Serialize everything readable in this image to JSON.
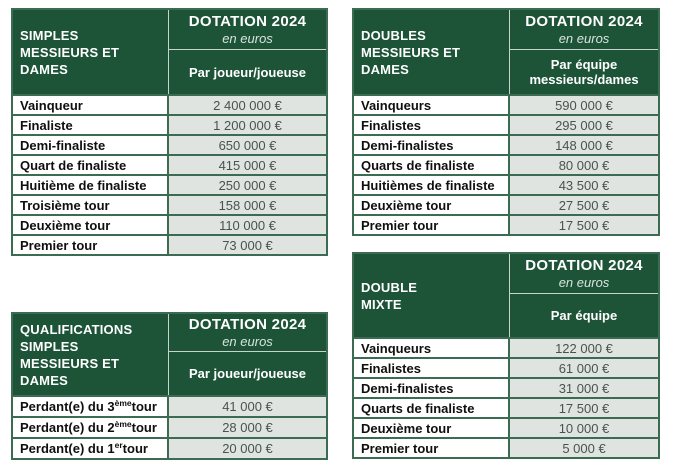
{
  "document": {
    "colors": {
      "green": "#1d5438",
      "border": "#3c6b54",
      "value_bg": "#e0e4e0",
      "value_text": "#49534d",
      "label_text": "#0f0f0f"
    }
  },
  "tables": [
    {
      "name": "simples",
      "title": "SIMPLES\nMESSIEURS ET DAMES",
      "header": {
        "title": "DOTATION 2024",
        "subtitle": "en euros",
        "unit": "Par joueur/joueuse"
      },
      "rows": [
        {
          "label": "Vainqueur",
          "value": "2 400 000 €"
        },
        {
          "label": "Finaliste",
          "value": "1 200 000 €"
        },
        {
          "label": "Demi-finaliste",
          "value": "650 000 €"
        },
        {
          "label": "Quart de finaliste",
          "value": "415 000 €"
        },
        {
          "label": "Huitième de finaliste",
          "value": "250 000 €"
        },
        {
          "label": "Troisième tour",
          "value": "158 000 €"
        },
        {
          "label": "Deuxième tour",
          "value": "110 000 €"
        },
        {
          "label": "Premier tour",
          "value": "73 000 €"
        }
      ]
    },
    {
      "name": "doubles",
      "title": "DOUBLES\nMESSIEURS ET DAMES",
      "header": {
        "title": "DOTATION 2024",
        "subtitle": "en euros",
        "unit": "Par équipe messieurs/dames"
      },
      "rows": [
        {
          "label": "Vainqueurs",
          "value": "590 000 €"
        },
        {
          "label": "Finalistes",
          "value": "295 000 €"
        },
        {
          "label": "Demi-finalistes",
          "value": "148 000 €"
        },
        {
          "label": "Quarts de finaliste",
          "value": "80 000 €"
        },
        {
          "label": "Huitièmes de finaliste",
          "value": "43 500 €"
        },
        {
          "label": "Deuxième tour",
          "value": "27 500 €"
        },
        {
          "label": "Premier tour",
          "value": "17 500 €"
        }
      ]
    },
    {
      "name": "qualifications-simples",
      "title": "QUALIFICATIONS\nSIMPLES\nMESSIEURS ET DAMES",
      "header": {
        "title": "DOTATION 2024",
        "subtitle": "en euros",
        "unit": "Par joueur/joueuse"
      },
      "rows": [
        {
          "label_pre": "Perdant(e) du 3",
          "label_sup": "ème",
          "label_post": " tour",
          "value": "41 000 €"
        },
        {
          "label_pre": "Perdant(e) du 2",
          "label_sup": "ème",
          "label_post": " tour",
          "value": "28 000 €"
        },
        {
          "label_pre": "Perdant(e) du 1",
          "label_sup": "er",
          "label_post": " tour",
          "value": "20 000 €"
        }
      ]
    },
    {
      "name": "double-mixte",
      "title": "DOUBLE\nMIXTE",
      "header": {
        "title": "DOTATION 2024",
        "subtitle": "en euros",
        "unit": "Par équipe"
      },
      "rows": [
        {
          "label": "Vainqueurs",
          "value": "122 000 €"
        },
        {
          "label": "Finalistes",
          "value": "61 000 €"
        },
        {
          "label": "Demi-finalistes",
          "value": "31 000 €"
        },
        {
          "label": "Quarts de finaliste",
          "value": "17 500 €"
        },
        {
          "label": "Deuxième tour",
          "value": "10 000 €"
        },
        {
          "label": "Premier tour",
          "value": "5 000 €"
        }
      ]
    }
  ]
}
